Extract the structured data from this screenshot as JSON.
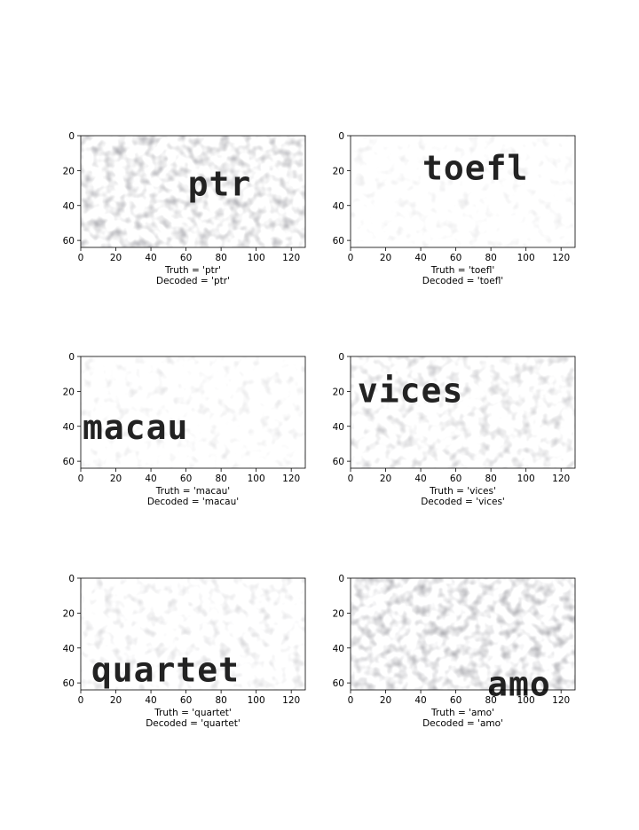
{
  "chart_data": [
    {
      "type": "image",
      "truth_label": "Truth = 'ptr'",
      "decoded_label": "Decoded = 'ptr'",
      "word": "ptr",
      "word_x": 61,
      "word_y": 18,
      "x_ticks": [
        "0",
        "20",
        "40",
        "60",
        "80",
        "100",
        "120"
      ],
      "y_ticks": [
        "0",
        "20",
        "40",
        "60"
      ],
      "xlim": [
        0,
        128
      ],
      "ylim": [
        0,
        64
      ]
    },
    {
      "type": "image",
      "truth_label": "Truth = 'toefl'",
      "decoded_label": "Decoded = 'toefl'",
      "word": "toefl",
      "word_x": 41,
      "word_y": 9,
      "x_ticks": [
        "0",
        "20",
        "40",
        "60",
        "80",
        "100",
        "120"
      ],
      "y_ticks": [
        "0",
        "20",
        "40",
        "60"
      ],
      "xlim": [
        0,
        128
      ],
      "ylim": [
        0,
        64
      ]
    },
    {
      "type": "image",
      "truth_label": "Truth = 'macau'",
      "decoded_label": "Decoded = 'macau'",
      "word": "macau",
      "word_x": 1,
      "word_y": 31,
      "x_ticks": [
        "0",
        "20",
        "40",
        "60",
        "80",
        "100",
        "120"
      ],
      "y_ticks": [
        "0",
        "20",
        "40",
        "60"
      ],
      "xlim": [
        0,
        128
      ],
      "ylim": [
        0,
        64
      ]
    },
    {
      "type": "image",
      "truth_label": "Truth = 'vices'",
      "decoded_label": "Decoded = 'vices'",
      "word": "vices",
      "word_x": 4,
      "word_y": 10,
      "x_ticks": [
        "0",
        "20",
        "40",
        "60",
        "80",
        "100",
        "120"
      ],
      "y_ticks": [
        "0",
        "20",
        "40",
        "60"
      ],
      "xlim": [
        0,
        128
      ],
      "ylim": [
        0,
        64
      ]
    },
    {
      "type": "image",
      "truth_label": "Truth = 'quartet'",
      "decoded_label": "Decoded = 'quartet'",
      "word": "quartet",
      "word_x": 6,
      "word_y": 43,
      "x_ticks": [
        "0",
        "20",
        "40",
        "60",
        "80",
        "100",
        "120"
      ],
      "y_ticks": [
        "0",
        "20",
        "40",
        "60"
      ],
      "xlim": [
        0,
        128
      ],
      "ylim": [
        0,
        64
      ]
    },
    {
      "type": "image",
      "truth_label": "Truth = 'amo'",
      "decoded_label": "Decoded = 'amo'",
      "word": "amo",
      "word_x": 78,
      "word_y": 51,
      "x_ticks": [
        "0",
        "20",
        "40",
        "60",
        "80",
        "100",
        "120"
      ],
      "y_ticks": [
        "0",
        "20",
        "40",
        "60"
      ],
      "xlim": [
        0,
        128
      ],
      "ylim": [
        0,
        64
      ]
    }
  ]
}
